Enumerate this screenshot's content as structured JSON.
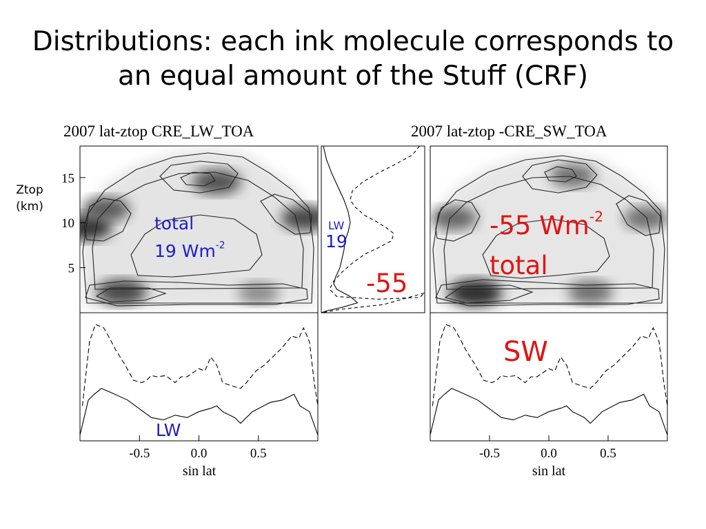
{
  "slide": {
    "title_line1": "Distributions: each ink molecule corresponds to",
    "title_line2": "an equal amount of the Stuff (CRF)"
  },
  "panels": {
    "left_title": "2007 lat-ztop CRE_LW_TOA",
    "right_title": "2007 lat-ztop -CRE_SW_TOA",
    "ylabel_line1": "Ztop",
    "ylabel_line2": "(km)",
    "xlabel_left": "sin lat",
    "xlabel_right": "sin lat"
  },
  "annotations": {
    "lw_total_word": "total",
    "lw_total_value": "19 Wm",
    "lw_total_exp": "-2",
    "profile_lw": "LW",
    "profile_lw_value": "19",
    "profile_sw_value": "-55",
    "sw_total_value": "-55 Wm",
    "sw_total_exp": "-2",
    "sw_total_word": "total",
    "sw_label": "SW",
    "lw_label": "LW"
  },
  "colors": {
    "blue_annotation": "#1d1dc8",
    "red_annotation": "#e01414"
  },
  "chart_data": [
    {
      "type": "heatmap",
      "title": "2007 lat-ztop CRE_LW_TOA",
      "xlabel": "",
      "ylabel": "Ztop (km)",
      "xlim": [
        -1,
        1
      ],
      "ylim": [
        0,
        18.5
      ],
      "x_ticks": [],
      "y_ticks": [
        5,
        10,
        15
      ],
      "y_tick_labels": [
        "5",
        "10",
        "15"
      ],
      "maxima": [
        {
          "x": -0.95,
          "y": 9.5,
          "level": 0.9
        },
        {
          "x": -0.78,
          "y": 11.5,
          "level": 0.7
        },
        {
          "x": 0.15,
          "y": 14.5,
          "level": 0.75
        },
        {
          "x": 0.9,
          "y": 10.5,
          "level": 0.8
        },
        {
          "x": -0.65,
          "y": 2.3,
          "level": 0.8
        },
        {
          "x": 0.5,
          "y": 2.2,
          "level": 0.45
        }
      ]
    },
    {
      "type": "line",
      "title": "",
      "xlabel": "sin lat",
      "ylabel": "",
      "xlim": [
        -1,
        1
      ],
      "ylim": [
        0,
        1.1
      ],
      "x_ticks": [
        -0.5,
        0.0,
        0.5
      ],
      "x_tick_labels": [
        "-0.5",
        "0.0",
        "0.5"
      ],
      "series": [
        {
          "style": "dashed",
          "x": [
            -0.98,
            -0.92,
            -0.87,
            -0.8,
            -0.75,
            -0.7,
            -0.62,
            -0.55,
            -0.48,
            -0.44,
            -0.4,
            -0.35,
            -0.28,
            -0.2,
            -0.15,
            -0.1,
            0.0,
            0.05,
            0.1,
            0.15,
            0.2,
            0.28,
            0.35,
            0.4,
            0.48,
            0.55,
            0.62,
            0.7,
            0.78,
            0.84,
            0.88,
            0.93,
            0.97,
            1.0
          ],
          "y": [
            0.3,
            0.85,
            1.0,
            0.97,
            0.88,
            0.78,
            0.65,
            0.52,
            0.5,
            0.52,
            0.56,
            0.55,
            0.56,
            0.5,
            0.55,
            0.55,
            0.62,
            0.6,
            0.72,
            0.65,
            0.5,
            0.47,
            0.45,
            0.5,
            0.6,
            0.65,
            0.72,
            0.8,
            0.9,
            0.88,
            0.97,
            0.85,
            0.5,
            0.3
          ]
        },
        {
          "style": "solid",
          "x": [
            -1.0,
            -0.93,
            -0.88,
            -0.82,
            -0.75,
            -0.6,
            -0.4,
            -0.3,
            -0.2,
            -0.1,
            0.0,
            0.1,
            0.15,
            0.2,
            0.3,
            0.35,
            0.45,
            0.6,
            0.7,
            0.8,
            0.85,
            0.93,
            1.0
          ],
          "y": [
            0.05,
            0.35,
            0.4,
            0.45,
            0.42,
            0.35,
            0.2,
            0.18,
            0.22,
            0.2,
            0.25,
            0.28,
            0.3,
            0.25,
            0.2,
            0.15,
            0.25,
            0.33,
            0.35,
            0.4,
            0.3,
            0.25,
            0.05
          ]
        }
      ]
    },
    {
      "type": "line",
      "title": "",
      "xlabel": "",
      "ylabel": "",
      "xlim": [
        0,
        1
      ],
      "ylim": [
        0,
        18.5
      ],
      "series": [
        {
          "style": "dashed",
          "x": [
            0.95,
            0.88,
            0.72,
            0.55,
            0.4,
            0.3,
            0.28,
            0.33,
            0.42,
            0.52,
            0.62,
            0.7,
            0.68,
            0.55,
            0.42,
            0.3,
            0.2,
            0.12,
            0.08,
            0.15,
            0.55,
            0.95,
            1.0,
            0.6,
            0.2,
            0.0
          ],
          "y": [
            18.5,
            17.5,
            16.5,
            15.5,
            14.5,
            13.5,
            12.5,
            11.7,
            10.8,
            10.2,
            9.5,
            8.8,
            8.0,
            7.2,
            6.5,
            5.5,
            4.5,
            3.5,
            2.6,
            1.8,
            1.5,
            1.7,
            2.2,
            0.9,
            0.4,
            0.0
          ]
        },
        {
          "style": "solid",
          "x": [
            0.02,
            0.05,
            0.1,
            0.16,
            0.22,
            0.26,
            0.28,
            0.26,
            0.23,
            0.22,
            0.2,
            0.18,
            0.14,
            0.12,
            0.15,
            0.28,
            0.35,
            0.2,
            0.05,
            0.0
          ],
          "y": [
            18.5,
            17.0,
            15.5,
            14.0,
            12.5,
            11.2,
            10.0,
            9.0,
            8.0,
            7.0,
            6.0,
            5.0,
            4.0,
            3.2,
            2.6,
            1.8,
            1.1,
            0.6,
            0.2,
            0.0
          ]
        }
      ]
    },
    {
      "type": "heatmap",
      "title": "2007 lat-ztop -CRE_SW_TOA",
      "xlabel": "",
      "ylabel": "",
      "xlim": [
        -1,
        1
      ],
      "ylim": [
        0,
        18.5
      ],
      "maxima": [
        {
          "x": -0.8,
          "y": 10.5,
          "level": 0.65
        },
        {
          "x": 0.2,
          "y": 15.2,
          "level": 0.6
        },
        {
          "x": 0.82,
          "y": 10.5,
          "level": 0.6
        },
        {
          "x": -0.62,
          "y": 2.2,
          "level": 0.95
        },
        {
          "x": 0.35,
          "y": 2.3,
          "level": 0.6
        }
      ]
    },
    {
      "type": "line",
      "title": "",
      "xlabel": "sin lat",
      "ylabel": "",
      "xlim": [
        -1,
        1
      ],
      "ylim": [
        0,
        1.1
      ],
      "x_ticks": [
        -0.5,
        0.0,
        0.5
      ],
      "x_tick_labels": [
        "-0.5",
        "0.0",
        "0.5"
      ],
      "series": [
        {
          "style": "dashed",
          "x": [
            -0.98,
            -0.92,
            -0.87,
            -0.8,
            -0.75,
            -0.7,
            -0.62,
            -0.55,
            -0.48,
            -0.44,
            -0.4,
            -0.35,
            -0.28,
            -0.2,
            -0.15,
            -0.1,
            0.0,
            0.05,
            0.1,
            0.15,
            0.2,
            0.28,
            0.35,
            0.4,
            0.48,
            0.55,
            0.62,
            0.7,
            0.78,
            0.84,
            0.88,
            0.93,
            0.97,
            1.0
          ],
          "y": [
            0.3,
            0.85,
            1.0,
            0.97,
            0.88,
            0.78,
            0.65,
            0.52,
            0.5,
            0.52,
            0.56,
            0.55,
            0.56,
            0.5,
            0.55,
            0.55,
            0.62,
            0.6,
            0.72,
            0.65,
            0.5,
            0.47,
            0.45,
            0.5,
            0.6,
            0.65,
            0.72,
            0.8,
            0.9,
            0.88,
            0.97,
            0.85,
            0.5,
            0.3
          ]
        },
        {
          "style": "solid",
          "x": [
            -1.0,
            -0.93,
            -0.88,
            -0.82,
            -0.75,
            -0.6,
            -0.4,
            -0.3,
            -0.2,
            -0.1,
            0.0,
            0.1,
            0.15,
            0.2,
            0.3,
            0.35,
            0.45,
            0.6,
            0.7,
            0.8,
            0.85,
            0.93,
            1.0
          ],
          "y": [
            0.05,
            0.35,
            0.4,
            0.45,
            0.42,
            0.35,
            0.2,
            0.18,
            0.22,
            0.2,
            0.25,
            0.28,
            0.3,
            0.25,
            0.2,
            0.15,
            0.25,
            0.33,
            0.35,
            0.4,
            0.3,
            0.25,
            0.05
          ]
        }
      ]
    }
  ]
}
